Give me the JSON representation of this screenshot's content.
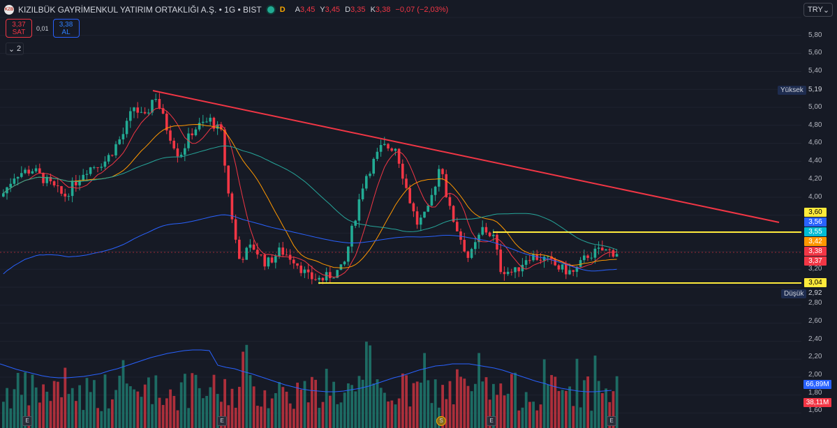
{
  "header": {
    "logo_text": "KZB",
    "title": "KIZILBÜK GAYRİMENKUL YATIRIM ORTAKLIĞI A.Ş. • 1G • BIST",
    "market_badge": "D",
    "ohlc": [
      {
        "key": "A",
        "value": "3,45"
      },
      {
        "key": "Y",
        "value": "3,45"
      },
      {
        "key": "D",
        "value": "3,35"
      },
      {
        "key": "K",
        "value": "3,38"
      }
    ],
    "change": "−0,07 (−2,03%)"
  },
  "trade": {
    "sell_price": "3,37",
    "sell_label": "SAT",
    "spread": "0,01",
    "buy_price": "3,38",
    "buy_label": "AL"
  },
  "indicators_toggle": {
    "icon": "chevron-down-icon",
    "count": "2"
  },
  "currency": {
    "label": "TRY",
    "icon": "chevron-down-icon"
  },
  "price_axis": [
    "5,80",
    "5,60",
    "5,40",
    "5,00",
    "4,80",
    "4,60",
    "4,40",
    "4,20",
    "4,00",
    "3,20",
    "2,80",
    "2,60",
    "2,40",
    "2,20",
    "2,00",
    "1,80",
    "1,60"
  ],
  "price_tags": [
    {
      "value": "3,60",
      "bg": "#ffeb3b",
      "fg": "#000000"
    },
    {
      "value": "3,56",
      "bg": "#2962ff",
      "fg": "#ffffff"
    },
    {
      "value": "3,55",
      "bg": "#00bcd4",
      "fg": "#ffffff"
    },
    {
      "value": "3,42",
      "bg": "#ff9800",
      "fg": "#ffffff"
    },
    {
      "value": "3,38",
      "bg": "#f23645",
      "fg": "#ffffff"
    },
    {
      "value": "3,37",
      "bg": "#f23645",
      "fg": "#ffffff"
    },
    {
      "value": "3,04",
      "bg": "#ffeb3b",
      "fg": "#000000"
    },
    {
      "value": "66,89M",
      "bg": "#2962ff",
      "fg": "#ffffff"
    },
    {
      "value": "38,11M",
      "bg": "#f23645",
      "fg": "#ffffff"
    }
  ],
  "high_tag": {
    "label": "Yüksek",
    "value": "5,19"
  },
  "low_tag": {
    "label": "Düşük",
    "value": "2,92"
  },
  "events": [
    {
      "label": "E"
    },
    {
      "label": "E"
    },
    {
      "label": "S"
    },
    {
      "label": "E"
    },
    {
      "label": "E"
    }
  ],
  "colors": {
    "background": "#161a25",
    "up": "#22ab94",
    "down": "#f23645",
    "trendline": "#f23645",
    "support": "#ffeb3b",
    "ma_fast": "#f23645",
    "ma_mid": "#ff9800",
    "ma_slow": "#26a69a",
    "ma_long": "#2962ff"
  }
}
